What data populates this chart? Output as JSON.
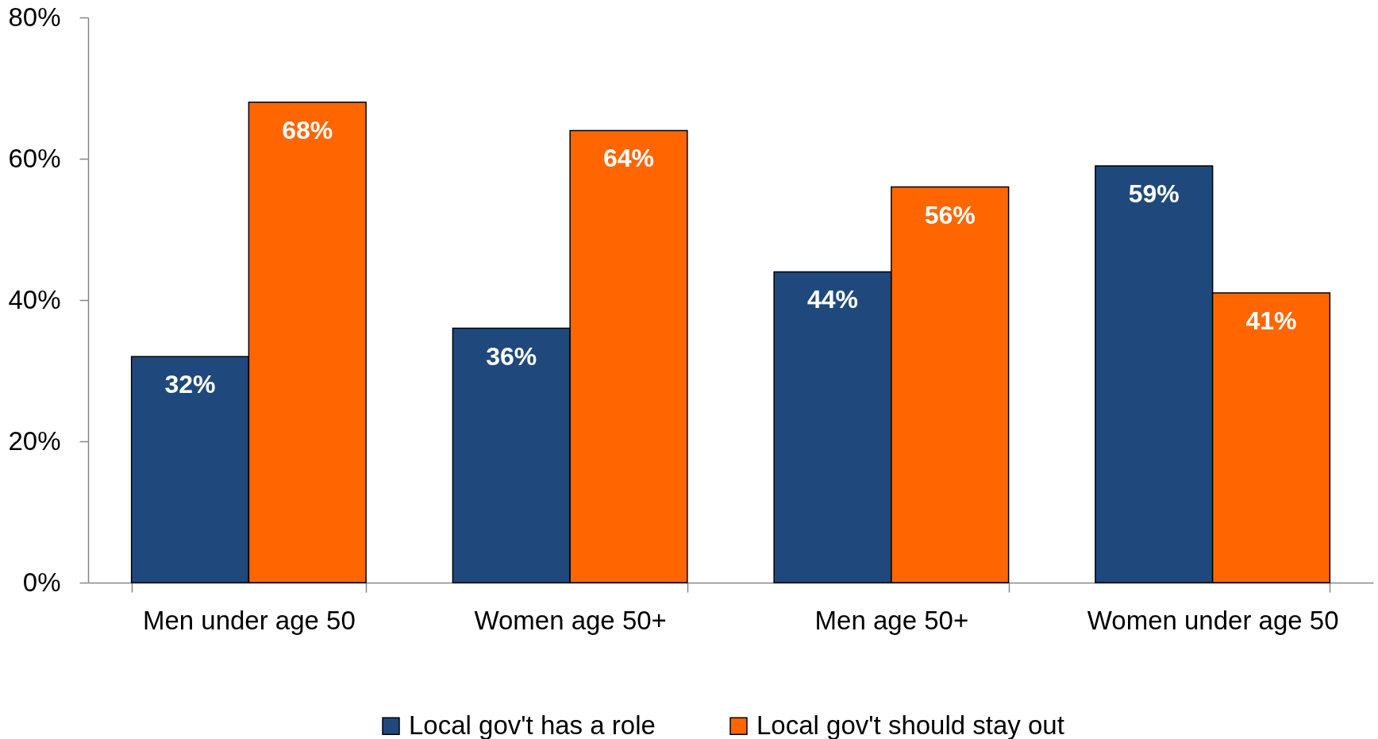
{
  "chart_data": {
    "type": "bar",
    "categories": [
      "Men under age 50",
      "Women age 50+",
      "Men age 50+",
      "Women under age 50"
    ],
    "series": [
      {
        "name": "Local gov't has a role",
        "color": "#1f497d",
        "values": [
          32,
          36,
          44,
          59
        ],
        "value_labels": [
          "32%",
          "36%",
          "44%",
          "59%"
        ]
      },
      {
        "name": "Local gov't should stay out",
        "color": "#ff6600",
        "values": [
          68,
          64,
          56,
          41
        ],
        "value_labels": [
          "68%",
          "64%",
          "56%",
          "41%"
        ]
      }
    ],
    "ylim": [
      0,
      80
    ],
    "yticks": [
      {
        "value": 0,
        "label": "0%"
      },
      {
        "value": 20,
        "label": "20%"
      },
      {
        "value": 40,
        "label": "40%"
      },
      {
        "value": 60,
        "label": "60%"
      },
      {
        "value": 80,
        "label": "80%"
      }
    ],
    "grid": false,
    "legend": "bottom"
  }
}
